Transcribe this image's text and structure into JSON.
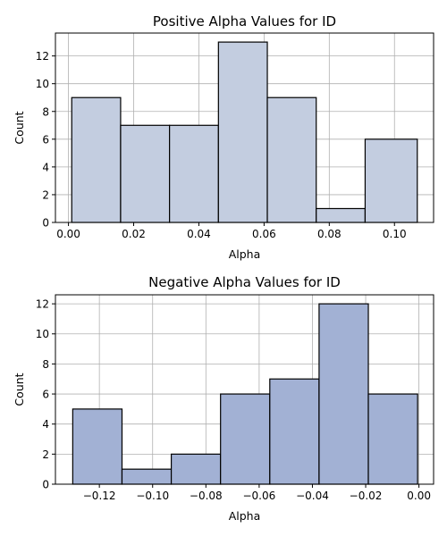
{
  "chart_data": [
    {
      "type": "bar",
      "title": "Positive Alpha Values for ID",
      "xlabel": "Alpha",
      "ylabel": "Count",
      "bin_edges": [
        0.001,
        0.016,
        0.031,
        0.046,
        0.061,
        0.076,
        0.091,
        0.107
      ],
      "values": [
        9,
        7,
        7,
        13,
        9,
        1,
        6
      ],
      "xlim": [
        -0.004,
        0.112
      ],
      "ylim": [
        0,
        13.65
      ],
      "xticks": [
        0.0,
        0.02,
        0.04,
        0.06,
        0.08,
        0.1
      ],
      "xtick_labels": [
        "0.00",
        "0.02",
        "0.04",
        "0.06",
        "0.08",
        "0.10"
      ],
      "yticks": [
        0,
        2,
        4,
        6,
        8,
        10,
        12
      ],
      "ytick_labels": [
        "0",
        "2",
        "4",
        "6",
        "8",
        "10",
        "12"
      ],
      "grid": true,
      "bar_color": "#c3cde0",
      "edge_color": "#000000"
    },
    {
      "type": "bar",
      "title": "Negative Alpha Values for ID",
      "xlabel": "Alpha",
      "ylabel": "Count",
      "bin_edges": [
        -0.13,
        -0.1115,
        -0.093,
        -0.0745,
        -0.056,
        -0.0375,
        -0.019,
        -0.0005
      ],
      "values": [
        5,
        1,
        2,
        6,
        7,
        12,
        6
      ],
      "xlim": [
        -0.1365,
        0.0055
      ],
      "ylim": [
        0,
        12.6
      ],
      "xticks": [
        -0.12,
        -0.1,
        -0.08,
        -0.06,
        -0.04,
        -0.02,
        0.0
      ],
      "xtick_labels": [
        "−0.12",
        "−0.10",
        "−0.08",
        "−0.06",
        "−0.04",
        "−0.02",
        "0.00"
      ],
      "yticks": [
        0,
        2,
        4,
        6,
        8,
        10,
        12
      ],
      "ytick_labels": [
        "0",
        "2",
        "4",
        "6",
        "8",
        "10",
        "12"
      ],
      "grid": true,
      "bar_color": "#a2b1d4",
      "edge_color": "#000000"
    }
  ]
}
